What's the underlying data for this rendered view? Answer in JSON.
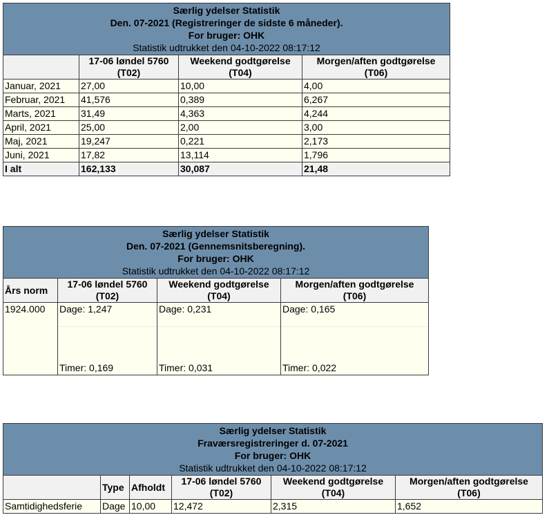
{
  "tables": [
    {
      "title": "Særlig ydelser Statistik",
      "subtitle": "Den. 07-2021 (Registreringer de sidste 6 måneder).",
      "user": "For bruger: OHK",
      "extracted": "Statistik udtrukket den 04-10-2022 08:17:12",
      "columns": [
        {
          "name": "17-06 løndel 5760",
          "code": "(T02)"
        },
        {
          "name": "Weekend godtgørelse",
          "code": "(T04)"
        },
        {
          "name": "Morgen/aften godtgørelse",
          "code": "(T06)"
        }
      ],
      "rows": [
        [
          "Januar, 2021",
          "27,00",
          "10,00",
          "4,00"
        ],
        [
          "Februar, 2021",
          "41,576",
          "0,389",
          "6,267"
        ],
        [
          "Marts, 2021",
          "31,49",
          "4,363",
          "4,244"
        ],
        [
          "April, 2021",
          "25,00",
          "2,00",
          "3,00"
        ],
        [
          "Maj, 2021",
          "19,247",
          "0,221",
          "2,173"
        ],
        [
          "Juni, 2021",
          "17,82",
          "13,114",
          "1,796"
        ]
      ],
      "total": [
        "I alt",
        "162,133",
        "30,087",
        "21,48"
      ]
    },
    {
      "title": "Særlig ydelser Statistik",
      "subtitle": "Den. 07-2021 (Gennemsnitsberegning).",
      "user": "For bruger: OHK",
      "extracted": "Statistik udtrukket den 04-10-2022 08:17:12",
      "columns": [
        {
          "name": "Års norm"
        },
        {
          "name": "17-06 løndel 5760",
          "code": "(T02)"
        },
        {
          "name": "Weekend godtgørelse",
          "code": "(T04)"
        },
        {
          "name": "Morgen/aften godtgørelse",
          "code": "(T06)"
        }
      ],
      "rows": [
        {
          "norm": "1924.000",
          "cells": [
            {
              "dage": "Dage: 1,247",
              "timer": "Timer: 0,169"
            },
            {
              "dage": "Dage: 0,231",
              "timer": "Timer: 0,031"
            },
            {
              "dage": "Dage: 0,165",
              "timer": "Timer: 0,022"
            }
          ]
        }
      ]
    },
    {
      "title": "Særlig ydelser Statistik",
      "subtitle": "Fraværsregistreringer d. 07-2021",
      "user": "For bruger: OHK",
      "extracted": "Statistik udtrukket den 04-10-2022 08:17:12",
      "columns": [
        {
          "name": "Type"
        },
        {
          "name": "Afholdt"
        },
        {
          "name": "17-06 løndel 5760",
          "code": "(T02)"
        },
        {
          "name": "Weekend godtgørelse",
          "code": "(T04)"
        },
        {
          "name": "Morgen/aften godtgørelse",
          "code": "(T06)"
        }
      ],
      "rows": [
        [
          "Samtidighedsferie",
          "Dage",
          "10,00",
          "12,472",
          "2,315",
          "1,652"
        ]
      ]
    }
  ]
}
